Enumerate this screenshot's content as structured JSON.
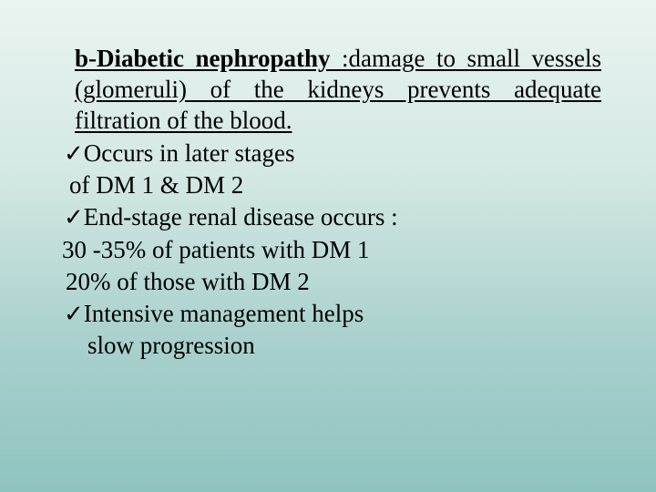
{
  "slide": {
    "background_gradient": [
      "#e9f4f0",
      "#d4e8e4",
      "#a8d0cc",
      "#8ec4c0"
    ],
    "text_color": "#000000",
    "font_family": "Times New Roman",
    "base_font_size_pt": 20,
    "title": {
      "bold_part": "b-Diabetic nephropathy",
      "rest_line1": " :damage to small",
      "line2": "vessels (glomeruli) of the kidneys prevents",
      "line3": "adequate filtration of the blood.",
      "underline": true
    },
    "bullets": {
      "check_glyph": "✓",
      "items": [
        {
          "lead": "Occurs in later stages",
          "sub": "of DM 1 & DM 2"
        },
        {
          "lead": "End-stage renal disease occurs :",
          "sub1": "30 -35% of patients with DM 1",
          "sub2": "20% of those with DM 2"
        },
        {
          "lead": "Intensive management helps",
          "sub": "slow progression"
        }
      ]
    }
  }
}
